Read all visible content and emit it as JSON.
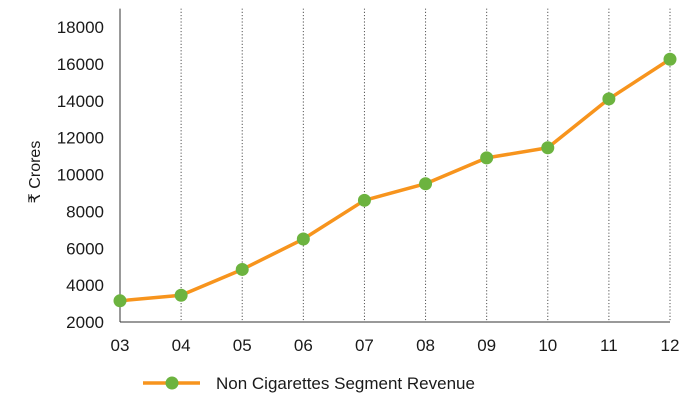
{
  "chart_data": {
    "type": "line",
    "x": [
      "03",
      "04",
      "05",
      "06",
      "07",
      "08",
      "09",
      "10",
      "11",
      "12"
    ],
    "series": [
      {
        "name": "Non Cigarettes Segment Revenue",
        "values": [
          3150,
          3450,
          4850,
          6500,
          8600,
          9500,
          10900,
          11450,
          14100,
          16250
        ]
      }
    ],
    "yticks": [
      2000,
      4000,
      6000,
      8000,
      10000,
      12000,
      14000,
      16000,
      18000
    ],
    "ylim": [
      2000,
      19000
    ],
    "ylabel": "₹ Crores",
    "xlabel": "",
    "title": "",
    "grid": "vertical-dotted",
    "legend": "bottom-center",
    "colors": {
      "line": "#f7941d",
      "marker": "#6cb33f",
      "axis": "#333333",
      "grid": "#555555"
    }
  }
}
